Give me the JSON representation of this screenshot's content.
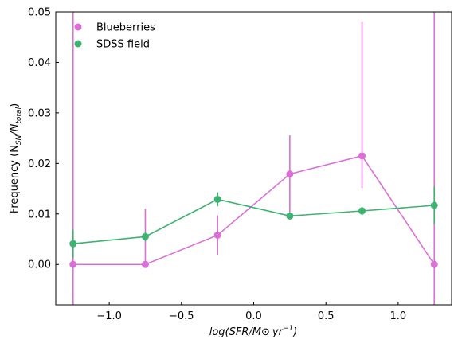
{
  "chart_data": {
    "type": "line",
    "xlabel_parts": {
      "a": "log(SFR/M",
      "odot": "⊙",
      "b": "yr",
      "sup": "−1",
      "c": ")"
    },
    "ylabel_parts": {
      "a": "Frequency (N",
      "sub1": "SN",
      "mid": "/N",
      "sub2": "total",
      "c": ")"
    },
    "xlim": [
      -1.37,
      1.37
    ],
    "ylim": [
      -0.008,
      0.05
    ],
    "xticks": [
      -1.0,
      -0.5,
      0.0,
      0.5,
      1.0
    ],
    "xtick_labels": [
      "−1.0",
      "−0.5",
      "0.0",
      "0.5",
      "1.0"
    ],
    "yticks": [
      0.0,
      0.01,
      0.02,
      0.03,
      0.04,
      0.05
    ],
    "ytick_labels": [
      "0.00",
      "0.01",
      "0.02",
      "0.03",
      "0.04",
      "0.05"
    ],
    "grid": false,
    "legend_position": "top-left",
    "series": [
      {
        "name": "Blueberries",
        "color": "#da70d6",
        "x": [
          -1.25,
          -0.75,
          -0.25,
          0.25,
          0.75,
          1.25
        ],
        "y": [
          0.0,
          0.0,
          0.0058,
          0.0179,
          0.0215,
          0.0
        ],
        "err_low": [
          -0.008,
          0.0,
          0.0019,
          0.0103,
          0.0151,
          -0.008
        ],
        "err_high": [
          0.05,
          0.011,
          0.0097,
          0.0256,
          0.048,
          0.05
        ]
      },
      {
        "name": "SDSS field",
        "color": "#3cb371",
        "x": [
          -1.25,
          -0.75,
          -0.25,
          0.25,
          0.75,
          1.25
        ],
        "y": [
          0.0041,
          0.0055,
          0.0129,
          0.0096,
          0.0106,
          0.0117
        ],
        "err_low": [
          0.0013,
          0.0046,
          0.0115,
          0.0089,
          0.0098,
          0.008
        ],
        "err_high": [
          0.0069,
          0.0064,
          0.0143,
          0.0103,
          0.0114,
          0.0154
        ]
      }
    ]
  }
}
